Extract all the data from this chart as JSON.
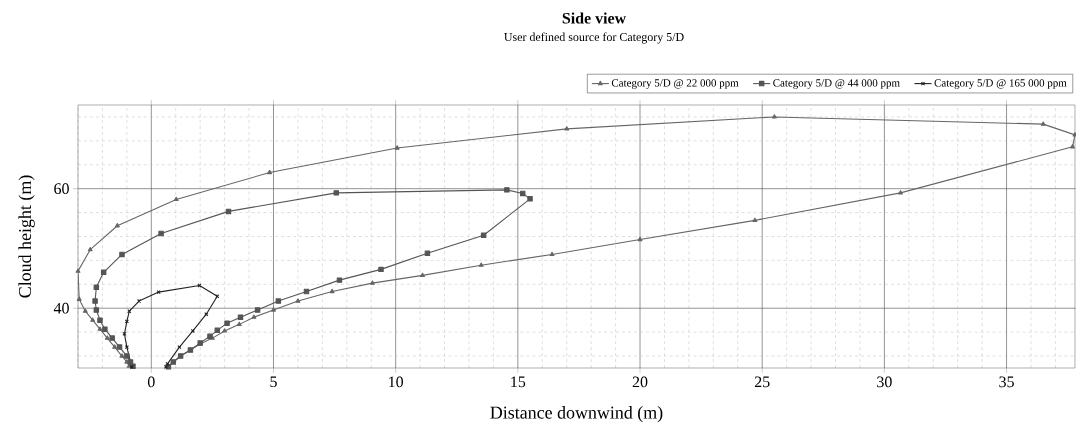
{
  "chart_data": {
    "type": "line",
    "title": "Side view",
    "subtitle": "User defined source for Category 5/D",
    "xlabel": "Distance downwind (m)",
    "ylabel": "Cloud height (m)",
    "xlim": [
      -3,
      37.8
    ],
    "ylim": [
      30,
      74
    ],
    "xticks": [
      0,
      5,
      10,
      15,
      20,
      25,
      30,
      35
    ],
    "yticks": [
      40,
      60
    ],
    "grid": true,
    "legend": "top right",
    "series": [
      {
        "name": "Category 5/D @ 22 000 ppm",
        "color": "#666666",
        "marker": "triangle",
        "x": [
          -0.9,
          -1.0,
          -1.2,
          -1.5,
          -1.8,
          -2.1,
          -2.4,
          -2.7,
          -2.95,
          -3.0,
          -2.5,
          -1.39,
          1.02,
          4.84,
          10.06,
          17.0,
          25.5,
          36.5,
          37.8,
          37.7,
          30.66,
          24.7,
          20.0,
          16.4,
          13.5,
          11.1,
          9.05,
          7.4,
          6.0,
          5.0,
          4.2,
          3.6,
          3.0,
          2.5,
          2.0,
          1.6,
          1.2,
          0.9,
          0.7
        ],
        "values": [
          30.3,
          31,
          32,
          33.5,
          35,
          36.5,
          38,
          39.5,
          41.5,
          46.2,
          49.8,
          53.8,
          58.2,
          62.7,
          66.8,
          70,
          72,
          70.8,
          69,
          67,
          59.3,
          54.7,
          51.5,
          49,
          47.2,
          45.5,
          44.2,
          42.8,
          41.2,
          39.7,
          38.5,
          37.3,
          36.2,
          35,
          34,
          33,
          32,
          31,
          30.3
        ]
      },
      {
        "name": "Category 5/D @ 44 000 ppm",
        "color": "#555555",
        "marker": "square",
        "x": [
          -0.75,
          -0.85,
          -1.0,
          -1.3,
          -1.6,
          -1.9,
          -2.1,
          -2.25,
          -2.3,
          -2.25,
          -1.95,
          -1.2,
          0.4,
          3.16,
          7.57,
          14.55,
          15.2,
          15.5,
          13.6,
          11.3,
          9.4,
          7.7,
          6.35,
          5.2,
          4.35,
          3.65,
          3.1,
          2.7,
          2.4,
          2.0,
          1.6,
          1.2,
          0.9,
          0.7
        ],
        "values": [
          30.3,
          31,
          32,
          33.5,
          35,
          36.5,
          38,
          39.7,
          41.2,
          43.5,
          46,
          49,
          52.5,
          56.2,
          59.3,
          59.8,
          59.2,
          58.3,
          52.2,
          49.2,
          46.5,
          44.7,
          42.8,
          41.2,
          39.7,
          38.5,
          37.5,
          36.3,
          35.3,
          34.2,
          33,
          32,
          31,
          30.2
        ]
      },
      {
        "name": "Category 5/D @ 165 000 ppm",
        "color": "#222222",
        "marker": "cross",
        "x": [
          -0.8,
          -1.0,
          -1.1,
          -1.0,
          -0.9,
          -0.5,
          0.3,
          1.97,
          2.7,
          2.25,
          1.7,
          1.15,
          0.66,
          0.6
        ],
        "values": [
          30.2,
          33.5,
          35.7,
          37.8,
          39.5,
          41.2,
          42.7,
          43.8,
          42.0,
          39.0,
          36.2,
          33.5,
          30.7,
          30.2
        ]
      }
    ]
  }
}
